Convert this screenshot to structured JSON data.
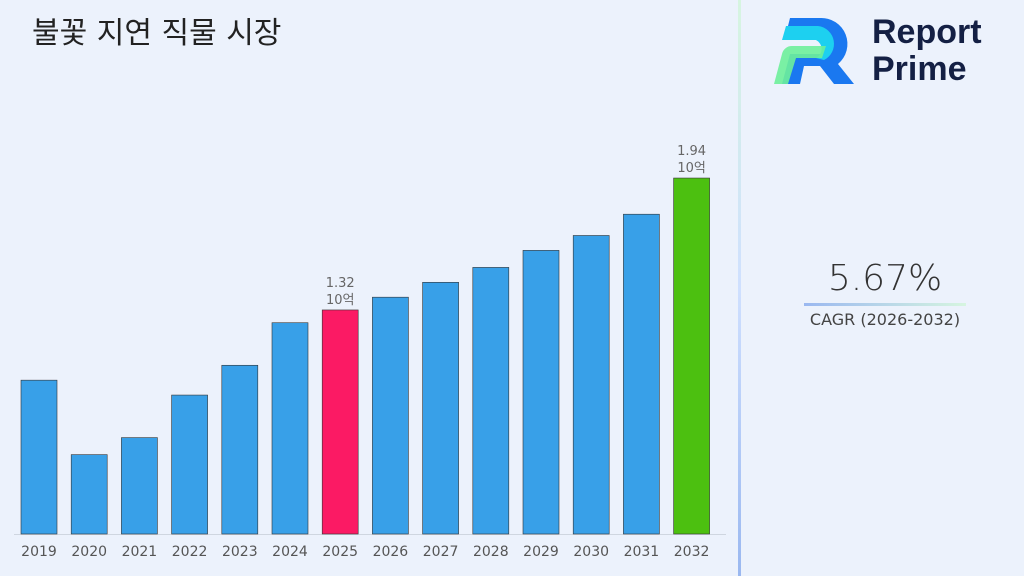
{
  "title": "불꽃 지연 직물 시장",
  "logo": {
    "line1": "Report",
    "line2": "Prime"
  },
  "cagr": {
    "value": "5.67%",
    "label": "CAGR (2026-2032)"
  },
  "chart_data": {
    "type": "bar",
    "title": "불꽃 지연 직물 시장",
    "categories": [
      "2019",
      "2020",
      "2021",
      "2022",
      "2023",
      "2024",
      "2025",
      "2026",
      "2027",
      "2028",
      "2029",
      "2030",
      "2031",
      "2032"
    ],
    "values": [
      0.99,
      0.64,
      0.72,
      0.92,
      1.06,
      1.26,
      1.32,
      1.38,
      1.45,
      1.52,
      1.6,
      1.67,
      1.77,
      1.94
    ],
    "unit": "10억",
    "data_labels": [
      {
        "category": "2025",
        "value": "1.32",
        "unit": "10억"
      },
      {
        "category": "2032",
        "value": "1.94",
        "unit": "10억"
      }
    ],
    "colors": {
      "default": "#38a0e8",
      "highlight_2025": "#fb1a64",
      "highlight_2032": "#4cc010"
    },
    "grid": false,
    "legend": "none"
  }
}
